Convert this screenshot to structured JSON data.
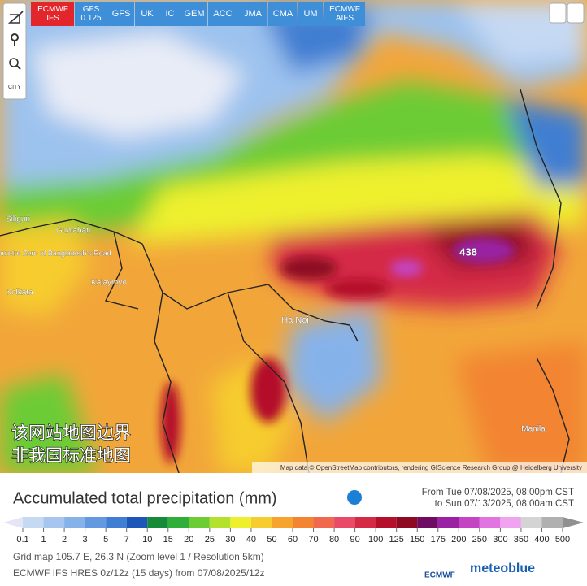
{
  "model_buttons": [
    "ECMWF IFS",
    "GFS 0.125",
    "GFS",
    "UK",
    "IC",
    "GEM",
    "ACC",
    "JMA",
    "CMA",
    "UM",
    "ECMWF AIFS"
  ],
  "active_model": "ECMWF IFS",
  "tools": {
    "city": "CITY"
  },
  "map_labels": [
    "438",
    "Ha Noi",
    "Kolkata",
    "Guwahati",
    "Siliguri",
    "Kalaymyo",
    "Manila",
    "Kilometre Zero of Bangladesh's Road"
  ],
  "watermark": [
    "该网站地图边界",
    "非我国标准地图"
  ],
  "attribution": "Map data © OpenStreetMap contributors, rendering GIScience Research Group @ Heidelberg University",
  "title": "Accumulated total precipitation (mm)",
  "period": [
    "From Tue 07/08/2025, 08:00pm CST",
    "to Sun 07/13/2025, 08:00am CST"
  ],
  "legend": {
    "values": [
      0.1,
      1,
      2,
      3,
      5,
      7,
      10,
      15,
      20,
      25,
      30,
      40,
      50,
      60,
      70,
      80,
      90,
      100,
      125,
      150,
      175,
      200,
      250,
      300,
      350,
      400,
      500
    ],
    "colors": [
      "#e4e6f6",
      "#c6d9f3",
      "#a6c6ef",
      "#86b2ea",
      "#6299e0",
      "#3f7ed2",
      "#1c56b8",
      "#178a3a",
      "#2fae3a",
      "#6ccc34",
      "#b4e22c",
      "#eef02e",
      "#f6cc2e",
      "#f6a42e",
      "#f28432",
      "#f0684e",
      "#e84a68",
      "#d42a46",
      "#b4102c",
      "#8e0a22",
      "#6e0c64",
      "#9a22a2",
      "#c444c4",
      "#e274e2",
      "#f0a4f0",
      "#d4d4d4",
      "#b0b0b0",
      "#909090"
    ]
  },
  "info": [
    "Grid map 105.7 E, 26.3 N (Zoom level 1 / Resolution 5km)",
    "ECMWF IFS HRES 0z/12z (15 days) from 07/08/2025/12z"
  ],
  "logos": [
    "ECMWF",
    "meteoblue"
  ]
}
